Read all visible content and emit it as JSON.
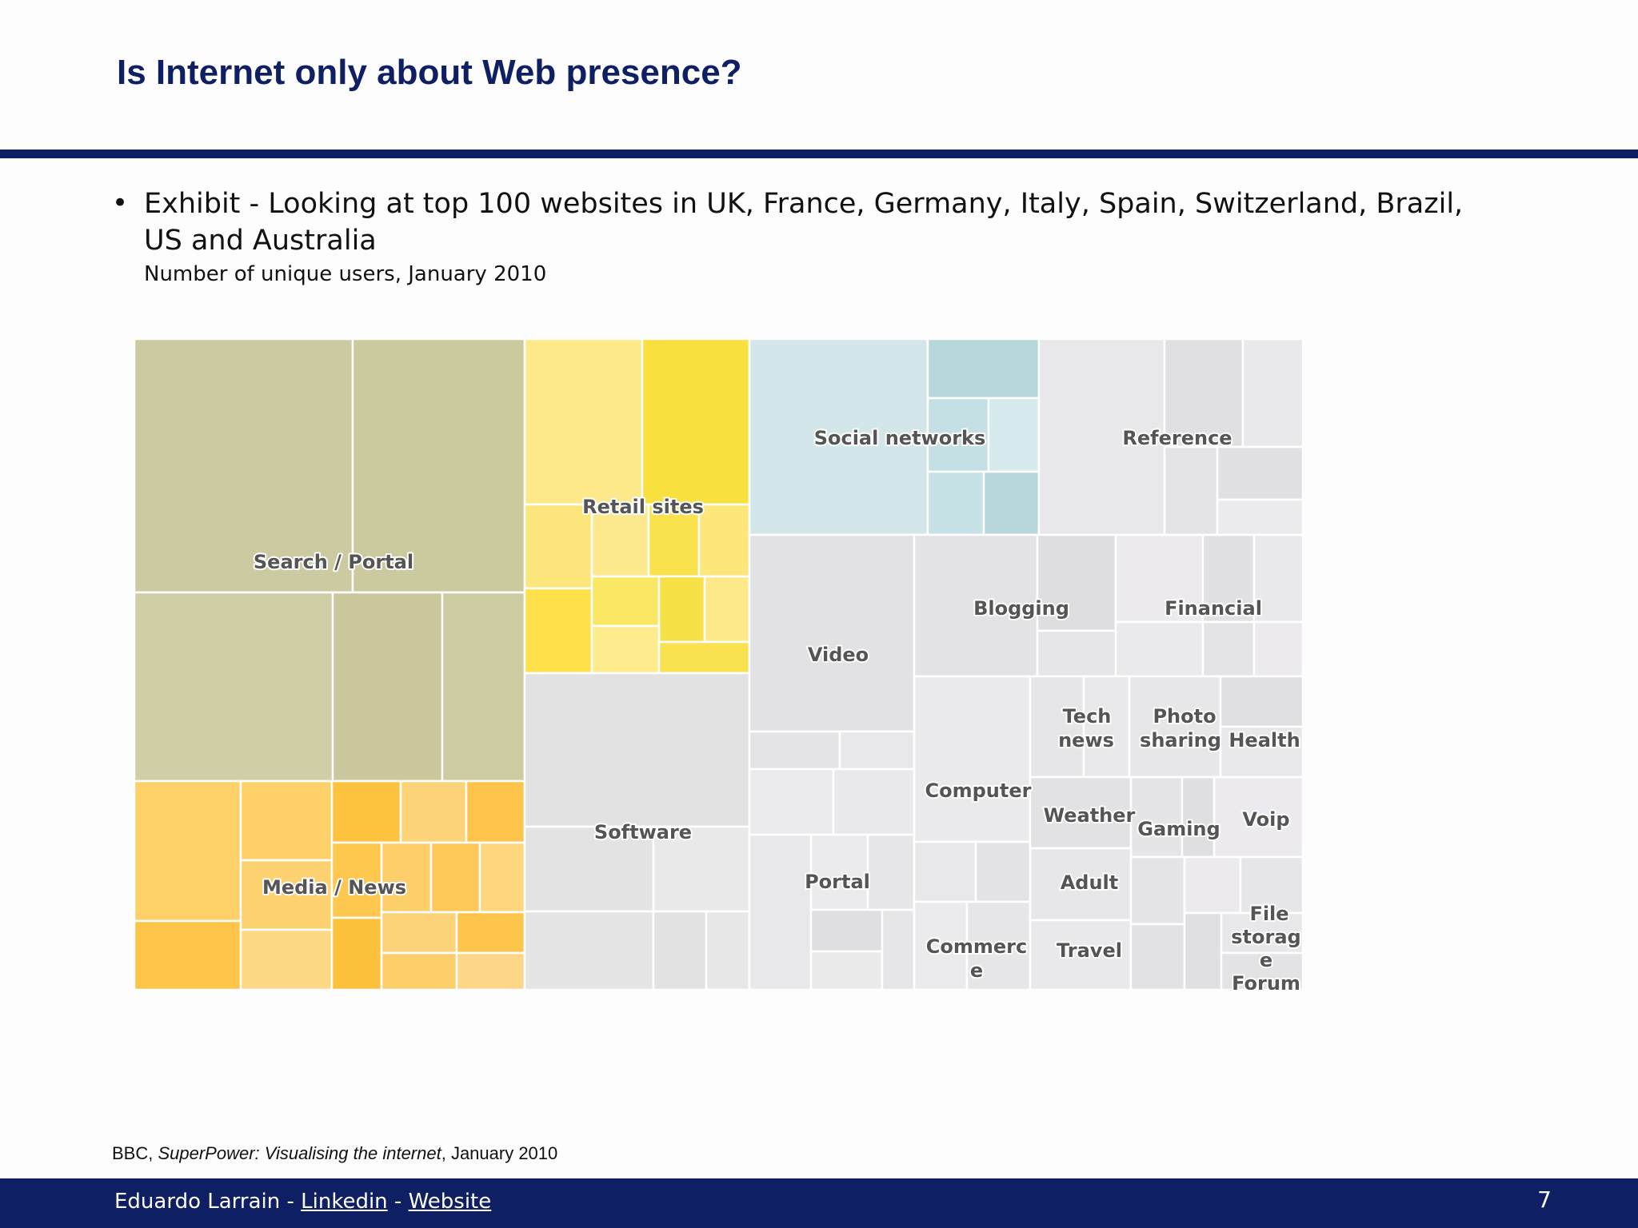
{
  "slide": {
    "title": "Is Internet only about Web presence?",
    "bullet": "Exhibit - Looking at top 100 websites in UK, France, Germany, Italy, Spain, Switzerland, Brazil, US and Australia",
    "subtitle": "Number of unique users, January 2010",
    "source_prefix": "BBC, ",
    "source_title": "SuperPower: Visualising the internet",
    "source_suffix": ", January 2010",
    "page_number": "7"
  },
  "footer": {
    "author": "Eduardo Larrain - ",
    "link1": "Linkedin",
    "separator": " - ",
    "link2": "Website"
  },
  "colors": {
    "navy": "#0f1f63",
    "search_portal": "#cccaa0",
    "retail": "#f9e45a",
    "media_news": "#fdc954",
    "social": "#c5e0e5",
    "grey": "#e3e2e5"
  },
  "chart_data": {
    "type": "treemap",
    "value_description": "Number of unique users, January 2010",
    "categories": [
      {
        "label": "Search / Portal"
      },
      {
        "label": "Media / News"
      },
      {
        "label": "Retail sites"
      },
      {
        "label": "Software"
      },
      {
        "label": "Social networks"
      },
      {
        "label": "Reference"
      },
      {
        "label": "Video"
      },
      {
        "label": "Portal"
      },
      {
        "label": "Blogging"
      },
      {
        "label": "Financial"
      },
      {
        "label": "Computer"
      },
      {
        "label": "Commerce"
      },
      {
        "label": "Tech news"
      },
      {
        "label": "Photo sharing"
      },
      {
        "label": "Health"
      },
      {
        "label": "Weather"
      },
      {
        "label": "Gaming"
      },
      {
        "label": "Voip"
      },
      {
        "label": "Adult"
      },
      {
        "label": "Travel"
      },
      {
        "label": "File storage"
      },
      {
        "label": "Forum"
      }
    ]
  }
}
